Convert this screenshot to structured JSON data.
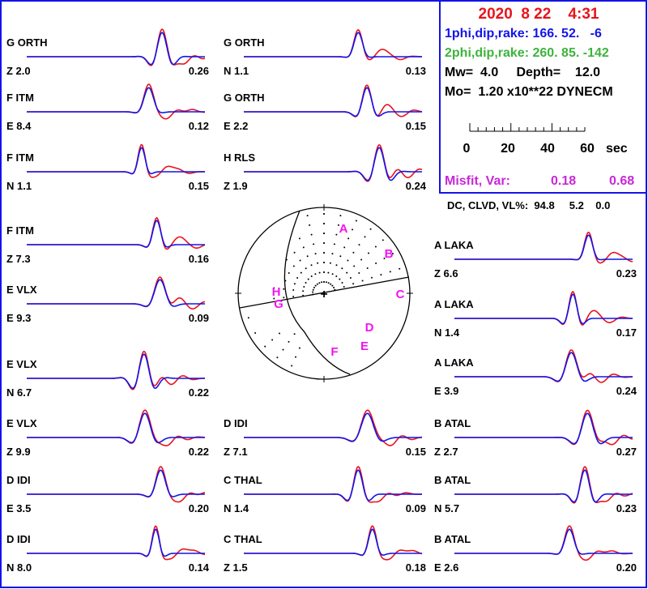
{
  "colors": {
    "observed": "#e8141c",
    "synthetic": "#1414e8",
    "title_red": "#e8141c",
    "plane1_blue": "#1414e8",
    "plane2_green": "#3cb43c",
    "misfit_magenta": "#c828d8",
    "station_magenta": "#f014f0",
    "border_blue": "#1414e8"
  },
  "header": {
    "date_line": "2020  8 22    4:31",
    "plane1_line": "1phi,dip,rake: 166. 52.   -6",
    "plane2_line": "2phi,dip,rake: 260. 85. -142",
    "mw_line": "Mw=  4.0     Depth=    12.0",
    "mo_line": "Mo=  1.20 x10**22 DYNECM",
    "time_scale_labels": [
      "0",
      "20",
      "40",
      "60"
    ],
    "time_scale_unit": "sec",
    "misfit_label": "Misfit, Var:",
    "misfit_value": "0.18",
    "var_value": "0.68"
  },
  "dc_line": "DC, CLVD, VL%:  94.8     5.2    0.0",
  "focal_mechanism": {
    "plane1": {
      "strike": 166,
      "dip": 52,
      "rake": -6
    },
    "plane2": {
      "strike": 260,
      "dip": 85,
      "rake": -142
    },
    "station_letters": [
      "A",
      "B",
      "C",
      "D",
      "E",
      "F",
      "G",
      "H"
    ]
  },
  "traces": [
    {
      "group": "G",
      "station": "ORTH",
      "comp": "Z",
      "shift": "2.0",
      "amp": "0.26"
    },
    {
      "group": "F",
      "station": "ITM",
      "comp": "E",
      "shift": "8.4",
      "amp": "0.12"
    },
    {
      "group": "F",
      "station": "ITM",
      "comp": "N",
      "shift": "1.1",
      "amp": "0.15"
    },
    {
      "group": "F",
      "station": "ITM",
      "comp": "Z",
      "shift": "7.3",
      "amp": "0.16"
    },
    {
      "group": "E",
      "station": "VLX",
      "comp": "E",
      "shift": "9.3",
      "amp": "0.09"
    },
    {
      "group": "E",
      "station": "VLX",
      "comp": "N",
      "shift": "6.7",
      "amp": "0.22"
    },
    {
      "group": "E",
      "station": "VLX",
      "comp": "Z",
      "shift": "9.9",
      "amp": "0.22"
    },
    {
      "group": "D",
      "station": "IDI",
      "comp": "E",
      "shift": "3.5",
      "amp": "0.20"
    },
    {
      "group": "D",
      "station": "IDI",
      "comp": "N",
      "shift": "8.0",
      "amp": "0.14"
    },
    {
      "group": "G",
      "station": "ORTH",
      "comp": "N",
      "shift": "1.1",
      "amp": "0.13"
    },
    {
      "group": "G",
      "station": "ORTH",
      "comp": "E",
      "shift": "2.2",
      "amp": "0.15"
    },
    {
      "group": "H",
      "station": "RLS",
      "comp": "Z",
      "shift": "1.9",
      "amp": "0.24"
    },
    {
      "group": "D",
      "station": "IDI",
      "comp": "Z",
      "shift": "7.1",
      "amp": "0.15"
    },
    {
      "group": "C",
      "station": "THAL",
      "comp": "N",
      "shift": "1.4",
      "amp": "0.09"
    },
    {
      "group": "C",
      "station": "THAL",
      "comp": "Z",
      "shift": "1.5",
      "amp": "0.18"
    },
    {
      "group": "A",
      "station": "LAKA",
      "comp": "Z",
      "shift": "6.6",
      "amp": "0.23"
    },
    {
      "group": "A",
      "station": "LAKA",
      "comp": "N",
      "shift": "1.4",
      "amp": "0.17"
    },
    {
      "group": "A",
      "station": "LAKA",
      "comp": "E",
      "shift": "3.9",
      "amp": "0.24"
    },
    {
      "group": "B",
      "station": "ATAL",
      "comp": "Z",
      "shift": "2.7",
      "amp": "0.27"
    },
    {
      "group": "B",
      "station": "ATAL",
      "comp": "N",
      "shift": "5.7",
      "amp": "0.23"
    },
    {
      "group": "B",
      "station": "ATAL",
      "comp": "E",
      "shift": "2.6",
      "amp": "0.20"
    }
  ]
}
